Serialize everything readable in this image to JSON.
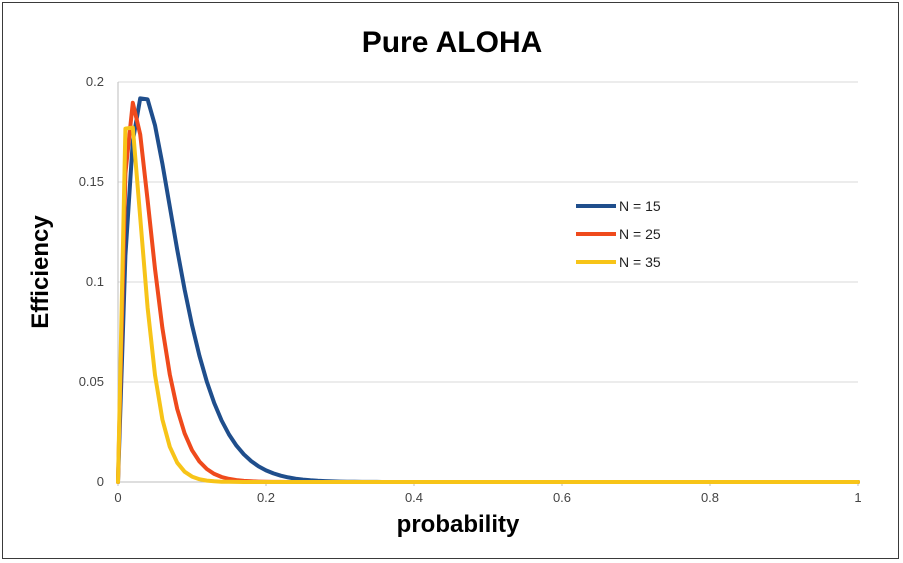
{
  "chart_data": {
    "type": "line",
    "title": "Pure ALOHA",
    "xlabel": "probability",
    "ylabel": "Efficiency",
    "xlim": [
      0,
      1
    ],
    "ylim": [
      0,
      0.2
    ],
    "x_ticks": [
      "0",
      "0.2",
      "0.4",
      "0.6",
      "0.8",
      "1"
    ],
    "y_ticks": [
      "0",
      "0.05",
      "0.1",
      "0.15",
      "0.2"
    ],
    "grid": true,
    "legend_position": "right",
    "colors": {
      "N = 15": "#1f4e8c",
      "N = 25": "#ef4a1c",
      "N = 35": "#f7c418"
    },
    "series": [
      {
        "name": "N = 15",
        "n": 15
      },
      {
        "name": "N = 25",
        "n": 25
      },
      {
        "name": "N = 35",
        "n": 35
      }
    ]
  }
}
